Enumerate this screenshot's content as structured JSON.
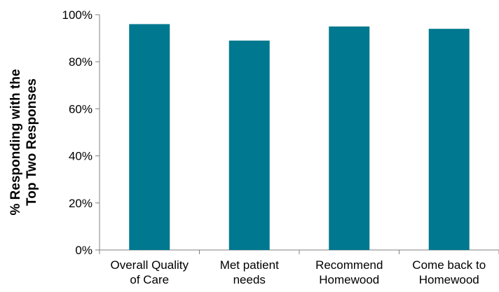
{
  "chart_data": {
    "type": "bar",
    "categories": [
      [
        "Overall Quality",
        "of Care"
      ],
      [
        "Met patient",
        "needs"
      ],
      [
        "Recommend",
        "Homewood"
      ],
      [
        "Come back to",
        "Homewood"
      ]
    ],
    "values": [
      96,
      89,
      95,
      94
    ],
    "ylabel_lines": [
      "% Responding with the",
      "Top Two Responses"
    ],
    "ylim": [
      0,
      100
    ],
    "yticks": [
      0,
      20,
      40,
      60,
      80,
      100
    ],
    "ytick_labels": [
      "0%",
      "20%",
      "40%",
      "60%",
      "80%",
      "100%"
    ],
    "bar_color": "#00788f",
    "grid": false,
    "legend": "none"
  }
}
